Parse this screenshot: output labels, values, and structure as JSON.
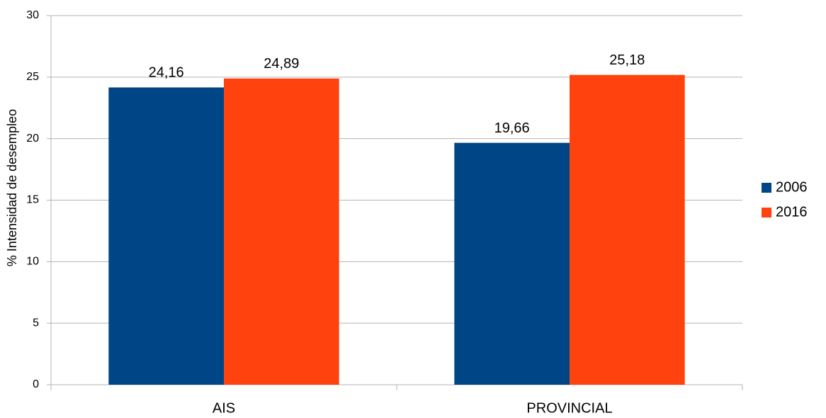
{
  "chart_data": {
    "type": "bar",
    "y_label": "% Intensidad de desempleo",
    "categories": [
      "AIS",
      "PROVINCIAL"
    ],
    "series": [
      {
        "name": "2006",
        "color": "#004586",
        "values": [
          24.16,
          19.66
        ],
        "value_labels": [
          "24,16",
          "19,66"
        ]
      },
      {
        "name": "2016",
        "color": "#ff420e",
        "values": [
          24.89,
          25.18
        ],
        "value_labels": [
          "24,89",
          "25,18"
        ]
      }
    ],
    "ylim": [
      0,
      30
    ],
    "yticks": [
      0,
      5,
      10,
      15,
      20,
      25,
      30
    ],
    "grid": true,
    "legend": "right"
  }
}
